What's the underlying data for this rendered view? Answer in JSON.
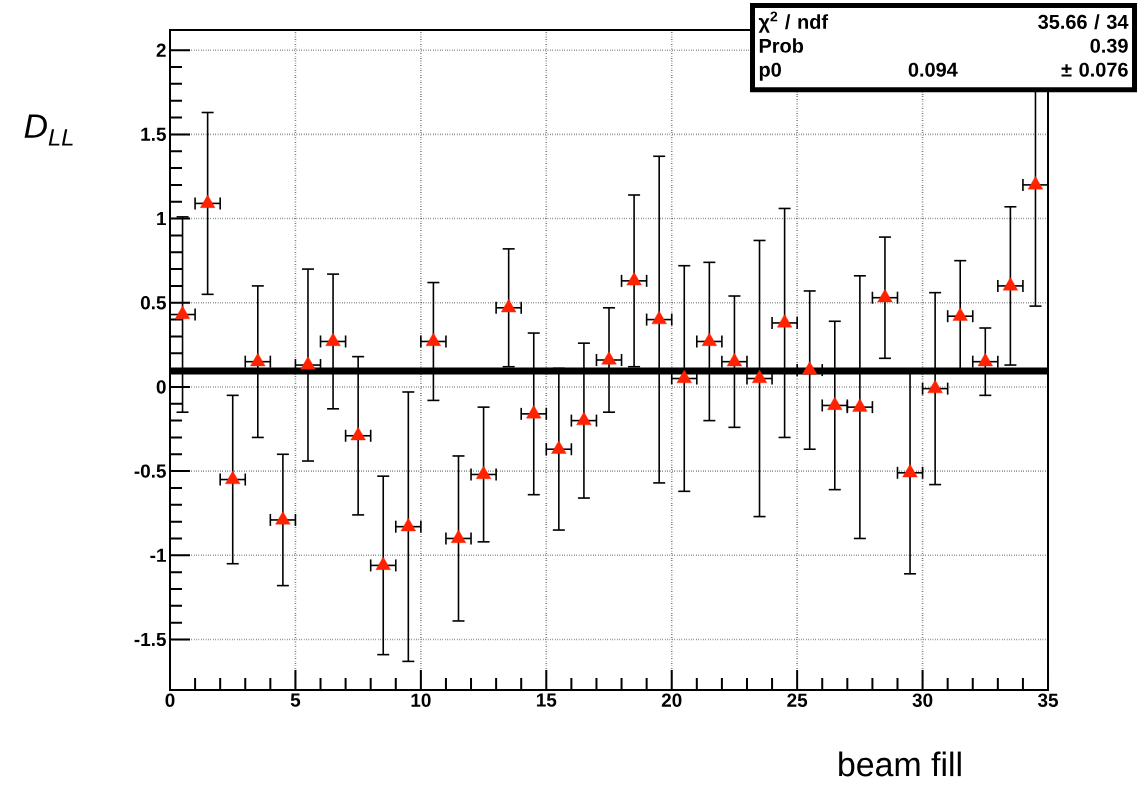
{
  "chart_data": {
    "type": "scatter",
    "xlabel": "beam fill",
    "ylabel": "D$_{LL}$",
    "xlim": [
      0,
      35
    ],
    "ylim": [
      -1.8,
      2.12
    ],
    "xticks": [
      0,
      5,
      10,
      15,
      20,
      25,
      30,
      35
    ],
    "yticks": [
      -1.5,
      -1,
      -0.5,
      0,
      0.5,
      1,
      1.5,
      2
    ],
    "grid": true,
    "annotations": [
      "χ$^{2}$ / ndf",
      "35.66 / 34",
      "Prob",
      "0.39",
      "p0",
      "0.094",
      "± 0.076"
    ],
    "series": [
      {
        "marker": "triangle",
        "color": "#ff2200",
        "x": [
          0.5,
          1.5,
          2.5,
          3.5,
          4.5,
          5.5,
          6.5,
          7.5,
          8.5,
          9.5,
          10.5,
          11.5,
          12.5,
          13.5,
          14.5,
          15.5,
          16.5,
          17.5,
          18.5,
          19.5,
          20.5,
          21.5,
          22.5,
          23.5,
          24.5,
          25.5,
          26.5,
          27.5,
          28.5,
          29.5,
          30.5,
          31.5,
          32.5,
          33.5,
          34.5
        ],
        "values": [
          0.43,
          1.09,
          -0.55,
          0.15,
          -0.79,
          0.13,
          0.27,
          -0.29,
          -1.06,
          -0.83,
          0.27,
          -0.9,
          -0.52,
          0.47,
          -0.16,
          -0.37,
          -0.2,
          0.16,
          0.63,
          0.4,
          0.05,
          0.27,
          0.15,
          0.05,
          0.38,
          0.1,
          -0.11,
          -0.12,
          0.53,
          -0.51,
          -0.01,
          0.42,
          0.15,
          0.6,
          1.2
        ],
        "errors": [
          0.58,
          0.54,
          0.5,
          0.45,
          0.39,
          0.57,
          0.4,
          0.47,
          0.53,
          0.8,
          0.35,
          0.49,
          0.4,
          0.35,
          0.48,
          0.48,
          0.46,
          0.31,
          0.51,
          0.97,
          0.67,
          0.47,
          0.39,
          0.82,
          0.68,
          0.47,
          0.5,
          0.78,
          0.36,
          0.6,
          0.57,
          0.33,
          0.2,
          0.47,
          0.72
        ],
        "xerrors": [
          0.5,
          0.5,
          0.5,
          0.5,
          0.5,
          0.5,
          0.5,
          0.5,
          0.5,
          0.5,
          0.5,
          0.5,
          0.5,
          0.5,
          0.5,
          0.5,
          0.5,
          0.5,
          0.5,
          0.5,
          0.5,
          0.5,
          0.5,
          0.5,
          0.5,
          0.5,
          0.5,
          0.5,
          0.5,
          0.5,
          0.5,
          0.5,
          0.5,
          0.5,
          0.5
        ]
      },
      {
        "type": "line",
        "color": "#000000",
        "x": [
          0,
          35
        ],
        "values": [
          0.094,
          0.094
        ]
      }
    ]
  }
}
